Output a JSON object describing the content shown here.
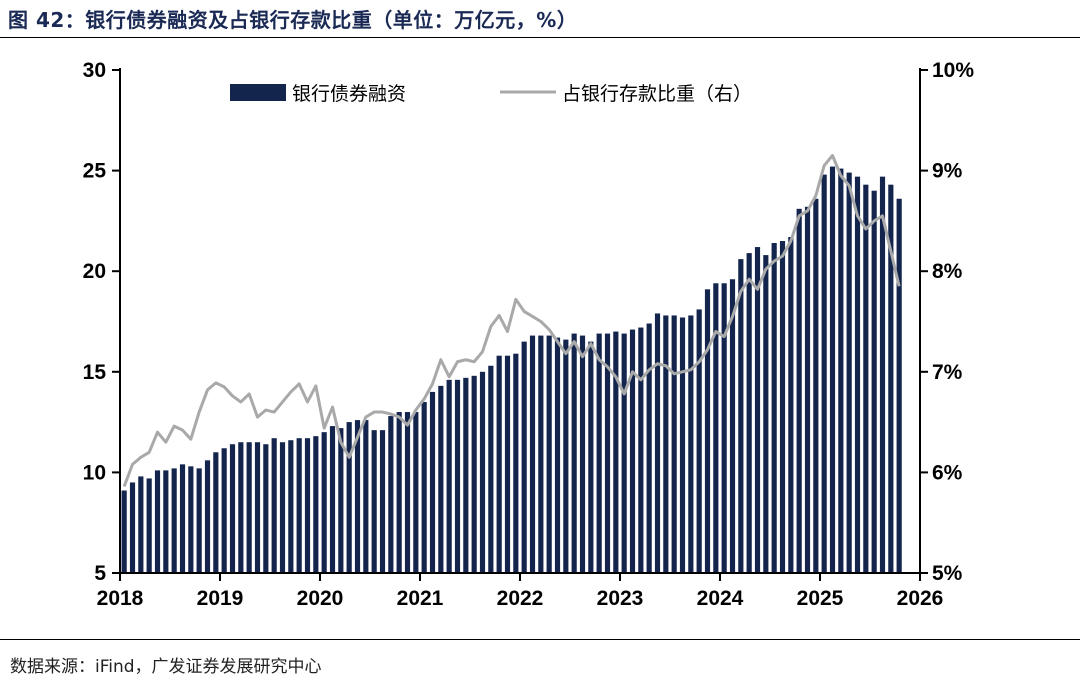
{
  "figure": {
    "title": "图 42：银行债券融资及占银行存款比重（单位：万亿元，%）",
    "source": "数据来源：iFind，广发证券发展研究中心"
  },
  "colors": {
    "bar": "#13244d",
    "line": "#a9a9a9",
    "title": "#1a2a55"
  },
  "chart_data": {
    "type": "bar+line",
    "title": "银行债券融资及占银行存款比重（单位：万亿元，%）",
    "x_tick_labels": [
      "2018",
      "2019",
      "2020",
      "2021",
      "2022",
      "2023",
      "2024",
      "2025",
      "2026"
    ],
    "x_range": [
      2018,
      2026
    ],
    "y_left": {
      "range": [
        5,
        30
      ],
      "ticks": [
        5,
        10,
        15,
        20,
        25,
        30
      ],
      "tick_labels": [
        "5",
        "10",
        "15",
        "20",
        "25",
        "30"
      ]
    },
    "y_right": {
      "range": [
        5,
        10
      ],
      "ticks": [
        5,
        6,
        7,
        8,
        9,
        10
      ],
      "tick_labels": [
        "5%",
        "6%",
        "7%",
        "8%",
        "9%",
        "10%"
      ]
    },
    "grid": false,
    "legend_position": "top",
    "series": [
      {
        "name": "银行债券融资",
        "type": "bar",
        "axis": "left",
        "start": "2018-01",
        "frequency": "monthly",
        "values": [
          9.1,
          9.5,
          9.8,
          9.7,
          10.1,
          10.1,
          10.2,
          10.4,
          10.3,
          10.2,
          10.6,
          11.0,
          11.2,
          11.4,
          11.5,
          11.5,
          11.5,
          11.4,
          11.7,
          11.5,
          11.6,
          11.7,
          11.7,
          11.8,
          12.0,
          12.3,
          12.2,
          12.5,
          12.6,
          12.6,
          12.1,
          12.1,
          12.8,
          13.0,
          13.0,
          13.0,
          13.5,
          14.0,
          14.3,
          14.6,
          14.6,
          14.7,
          14.8,
          15.0,
          15.3,
          15.8,
          15.8,
          15.9,
          16.5,
          16.8,
          16.8,
          16.8,
          16.7,
          16.6,
          16.9,
          16.8,
          16.5,
          16.9,
          16.9,
          17.0,
          16.9,
          17.1,
          17.2,
          17.4,
          17.9,
          17.8,
          17.8,
          17.7,
          17.8,
          18.1,
          19.1,
          19.4,
          19.4,
          19.6,
          20.6,
          20.9,
          21.2,
          20.8,
          21.4,
          21.5,
          21.7,
          23.1,
          23.2,
          23.6,
          24.8,
          25.2,
          25.1,
          24.9,
          24.7,
          24.3,
          24.0,
          24.7,
          24.3,
          23.6
        ]
      },
      {
        "name": "占银行存款比重（右）",
        "type": "line",
        "axis": "right",
        "start": "2018-01",
        "frequency": "monthly",
        "values": [
          5.86,
          6.08,
          6.15,
          6.2,
          6.4,
          6.3,
          6.46,
          6.42,
          6.33,
          6.6,
          6.82,
          6.89,
          6.85,
          6.76,
          6.7,
          6.78,
          6.55,
          6.62,
          6.6,
          6.7,
          6.8,
          6.88,
          6.7,
          6.86,
          6.44,
          6.65,
          6.3,
          6.15,
          6.35,
          6.55,
          6.6,
          6.6,
          6.58,
          6.55,
          6.47,
          6.62,
          6.73,
          6.88,
          7.12,
          6.95,
          7.1,
          7.12,
          7.1,
          7.2,
          7.45,
          7.56,
          7.4,
          7.72,
          7.6,
          7.55,
          7.5,
          7.42,
          7.3,
          7.18,
          7.3,
          7.15,
          7.28,
          7.12,
          7.05,
          6.95,
          6.78,
          7.0,
          6.92,
          7.02,
          7.08,
          7.06,
          6.98,
          7.0,
          7.02,
          7.1,
          7.22,
          7.4,
          7.35,
          7.55,
          7.8,
          7.92,
          7.82,
          8.02,
          8.1,
          8.15,
          8.3,
          8.55,
          8.6,
          8.75,
          9.05,
          9.15,
          8.95,
          8.85,
          8.55,
          8.42,
          8.5,
          8.55,
          8.2,
          7.85
        ]
      }
    ]
  }
}
